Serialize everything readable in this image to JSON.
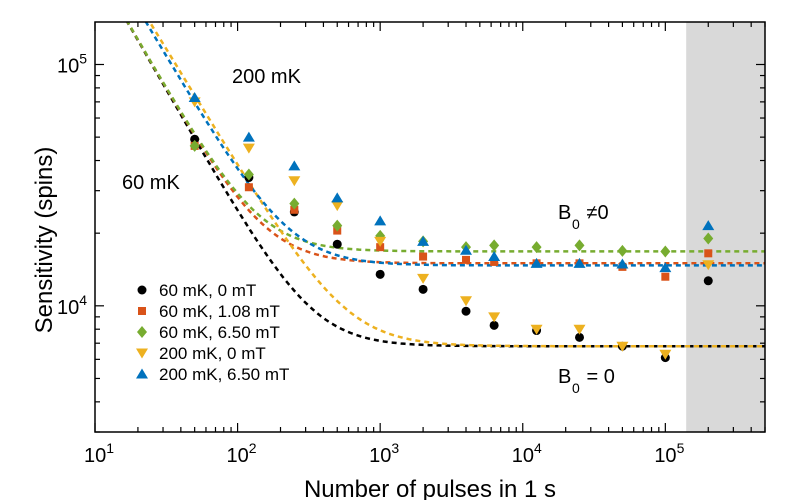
{
  "chart_data": {
    "type": "scatter",
    "title": "",
    "xlabel": "Number of pulses in 1 s",
    "ylabel": "Sensitivity (spins)",
    "xscale": "log",
    "yscale": "log",
    "xlim": [
      10,
      500000
    ],
    "ylim": [
      3000,
      150000
    ],
    "x_ticks": [
      {
        "value": 10,
        "base": "10",
        "exp": "1"
      },
      {
        "value": 100,
        "base": "10",
        "exp": "2"
      },
      {
        "value": 1000,
        "base": "10",
        "exp": "3"
      },
      {
        "value": 10000,
        "base": "10",
        "exp": "4"
      },
      {
        "value": 100000,
        "base": "10",
        "exp": "5"
      }
    ],
    "y_ticks": [
      {
        "value": 10000,
        "base": "10",
        "exp": "4"
      },
      {
        "value": 100000,
        "base": "10",
        "exp": "5"
      }
    ],
    "shaded_region": {
      "x_from": 140000,
      "x_to": 500000,
      "color": "#d9d9d9"
    },
    "annotations": {
      "label_200mK": "200 mK",
      "label_60mK": "60 mK",
      "b0_nonzero": {
        "base": "B",
        "sub": "0",
        "rest": " ≠0"
      },
      "b0_zero": {
        "base": "B",
        "sub": "0",
        "rest": " = 0"
      }
    },
    "x": [
      50,
      120,
      250,
      500,
      1000,
      2000,
      4000,
      6300,
      12500,
      25000,
      50000,
      100000,
      200000
    ],
    "series": [
      {
        "name": "60 mK, 0 mT",
        "color": "#000000",
        "marker": "circle",
        "values": [
          49000,
          34000,
          24500,
          18000,
          13500,
          11700,
          9500,
          8300,
          7900,
          7400,
          6800,
          6100,
          12700
        ],
        "fit": {
          "A": 2750000,
          "p": 1.03,
          "C": 6800
        }
      },
      {
        "name": "60 mK, 1.08 mT",
        "color": "#d95319",
        "marker": "square",
        "values": [
          46000,
          31000,
          25000,
          20500,
          17500,
          16000,
          15500,
          15200,
          15000,
          15000,
          14500,
          13200,
          16500
        ],
        "fit": {
          "A": 2750000,
          "p": 1.03,
          "C": 15000
        }
      },
      {
        "name": "60 mK, 6.50 mT",
        "color": "#77ac30",
        "marker": "diamond",
        "values": [
          46000,
          35000,
          26500,
          21500,
          19500,
          18500,
          17500,
          17800,
          17500,
          17800,
          16900,
          16800,
          19000
        ],
        "fit": {
          "A": 2750000,
          "p": 1.03,
          "C": 16800
        }
      },
      {
        "name": "200 mK, 0 mT",
        "color": "#edb120",
        "marker": "triangle-down",
        "values": [
          70000,
          45000,
          33000,
          26000,
          18500,
          13000,
          10500,
          9000,
          8000,
          8000,
          6800,
          6300,
          14800
        ],
        "fit": {
          "A": 3300000,
          "p": 0.97,
          "C": 6800
        }
      },
      {
        "name": "200 mK, 6.50 mT",
        "color": "#0072bd",
        "marker": "triangle-up",
        "values": [
          73000,
          50000,
          38000,
          28000,
          22500,
          18500,
          17000,
          16000,
          15000,
          15000,
          14900,
          14400,
          21500
        ],
        "fit": {
          "A": 3400000,
          "p": 1.0,
          "C": 14700
        }
      }
    ]
  }
}
